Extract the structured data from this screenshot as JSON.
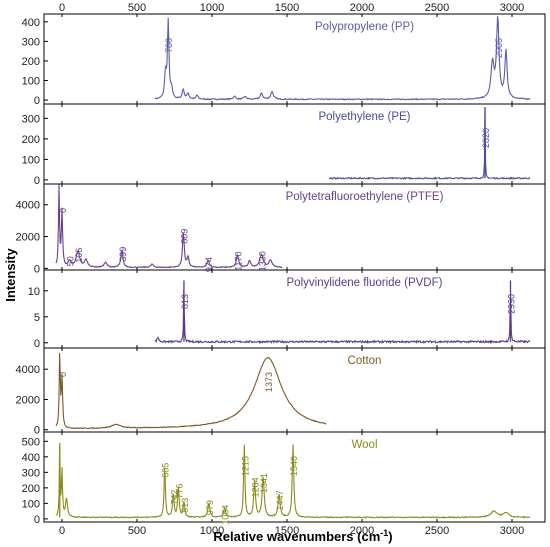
{
  "chart_data": {
    "type": "line",
    "xlabel": "Relative wavenumbers (cm",
    "xlabel_sup": "-1",
    "xlabel_tail": ")",
    "ylabel": "Intensity",
    "xlim": [
      -120,
      3220
    ],
    "x_ticks": [
      0,
      500,
      1000,
      1500,
      2000,
      2500,
      3000
    ],
    "x_tick_labels": [
      "0",
      "500",
      "1000",
      "1500",
      "2000",
      "2500",
      "3000"
    ],
    "grid": false,
    "panels": [
      {
        "title": "Polypropylene (PP)",
        "color": "#5b5ba8",
        "ylim": [
          -20,
          440
        ],
        "y_ticks": [
          0,
          100,
          200,
          300,
          400
        ],
        "y_tick_labels": [
          "0",
          "100",
          "200",
          "300",
          "400"
        ],
        "x_range": [
          620,
          3120
        ],
        "baseline": 4,
        "noise": 2.5,
        "peaks": [
          {
            "x": 690,
            "h": 130,
            "w": 7
          },
          {
            "x": 708,
            "h": 395,
            "w": 6
          },
          {
            "x": 730,
            "h": 50,
            "w": 8
          },
          {
            "x": 808,
            "h": 50,
            "w": 8
          },
          {
            "x": 840,
            "h": 30,
            "w": 8
          },
          {
            "x": 900,
            "h": 20,
            "w": 8
          },
          {
            "x": 1150,
            "h": 15,
            "w": 10
          },
          {
            "x": 1220,
            "h": 14,
            "w": 10
          },
          {
            "x": 1330,
            "h": 30,
            "w": 10
          },
          {
            "x": 1400,
            "h": 40,
            "w": 10
          },
          {
            "x": 2870,
            "h": 180,
            "w": 12
          },
          {
            "x": 2905,
            "h": 400,
            "w": 10
          },
          {
            "x": 2960,
            "h": 240,
            "w": 9
          }
        ],
        "labels": [
          {
            "x": 708,
            "text": "708"
          },
          {
            "x": 2905,
            "text": "2905"
          }
        ]
      },
      {
        "title": "Polyethylene (PE)",
        "color": "#4b4b9e",
        "ylim": [
          -20,
          370
        ],
        "y_ticks": [
          0,
          100,
          200,
          300
        ],
        "y_tick_labels": [
          "0",
          "100",
          "200",
          "300"
        ],
        "x_range": [
          1780,
          3120
        ],
        "baseline": 8,
        "noise": 3,
        "peaks": [
          {
            "x": 2820,
            "h": 345,
            "w": 2
          }
        ],
        "labels": [
          {
            "x": 2820,
            "text": "2820"
          }
        ]
      },
      {
        "title": "Polytetrafluoroethylene (PTFE)",
        "color": "#6a3f8a",
        "ylim": [
          -100,
          5300
        ],
        "y_ticks": [
          0,
          2000,
          4000
        ],
        "y_tick_labels": [
          "0",
          "2000",
          "4000"
        ],
        "x_range": [
          -40,
          1470
        ],
        "baseline": 60,
        "noise": 25,
        "peaks": [
          {
            "x": -20,
            "h": 5000,
            "w": 4
          },
          {
            "x": 0,
            "h": 3500,
            "w": 5
          },
          {
            "x": 50,
            "h": 400,
            "w": 10
          },
          {
            "x": 106,
            "h": 1000,
            "w": 14
          },
          {
            "x": 160,
            "h": 450,
            "w": 12
          },
          {
            "x": 290,
            "h": 300,
            "w": 12
          },
          {
            "x": 399,
            "h": 1100,
            "w": 8
          },
          {
            "x": 600,
            "h": 200,
            "w": 10
          },
          {
            "x": 809,
            "h": 2200,
            "w": 7
          },
          {
            "x": 840,
            "h": 600,
            "w": 8
          },
          {
            "x": 974,
            "h": 450,
            "w": 9
          },
          {
            "x": 1170,
            "h": 800,
            "w": 9
          },
          {
            "x": 1250,
            "h": 400,
            "w": 10
          },
          {
            "x": 1330,
            "h": 800,
            "w": 14
          },
          {
            "x": 1390,
            "h": 450,
            "w": 12
          }
        ],
        "labels": [
          {
            "x": 0,
            "text": "0"
          },
          {
            "x": 50,
            "text": "50"
          },
          {
            "x": 106,
            "text": "106"
          },
          {
            "x": 399,
            "text": "399"
          },
          {
            "x": 809,
            "text": "809"
          },
          {
            "x": 974,
            "text": "974"
          },
          {
            "x": 1170,
            "text": "1170"
          },
          {
            "x": 1330,
            "text": "1330"
          }
        ]
      },
      {
        "title": "Polyvinylidene fluoride (PVDF)",
        "color": "#5a3d8a",
        "ylim": [
          -1,
          14
        ],
        "y_ticks": [
          0,
          5,
          10
        ],
        "y_tick_labels": [
          "0",
          "5",
          "10"
        ],
        "x_range": [
          620,
          3120
        ],
        "baseline": 0.2,
        "noise": 0.18,
        "peaks": [
          {
            "x": 640,
            "h": 0.9,
            "w": 6
          },
          {
            "x": 813,
            "h": 11.8,
            "w": 2.5
          },
          {
            "x": 2990,
            "h": 11.8,
            "w": 2.5
          }
        ],
        "labels": [
          {
            "x": 813,
            "text": "813"
          },
          {
            "x": 2990,
            "text": "2990"
          }
        ]
      },
      {
        "title": "Cotton",
        "color": "#7a5a2a",
        "ylim": [
          -150,
          5400
        ],
        "y_ticks": [
          0,
          2000,
          4000
        ],
        "y_tick_labels": [
          "0",
          "2000",
          "4000"
        ],
        "x_range": [
          -40,
          1760
        ],
        "baseline": 50,
        "noise": 25,
        "peaks": [
          {
            "x": -15,
            "h": 5000,
            "w": 4
          },
          {
            "x": 0,
            "h": 3300,
            "w": 5
          },
          {
            "x": 360,
            "h": 250,
            "w": 35
          },
          {
            "x": 1373,
            "h": 4700,
            "w": 110
          }
        ],
        "labels": [
          {
            "x": 0,
            "text": "0"
          },
          {
            "x": 1373,
            "text": "1373"
          }
        ]
      },
      {
        "title": "Wool",
        "color": "#8a8a1e",
        "ylim": [
          -20,
          560
        ],
        "y_ticks": [
          0,
          100,
          200,
          300,
          400,
          500
        ],
        "y_tick_labels": [
          "0",
          "100",
          "200",
          "300",
          "400",
          "500"
        ],
        "x_range": [
          -40,
          3120
        ],
        "baseline": 10,
        "noise": 3,
        "peaks": [
          {
            "x": -15,
            "h": 480,
            "w": 3
          },
          {
            "x": 0,
            "h": 300,
            "w": 4
          },
          {
            "x": 30,
            "h": 120,
            "w": 8
          },
          {
            "x": 685,
            "h": 330,
            "w": 5
          },
          {
            "x": 742,
            "h": 150,
            "w": 6
          },
          {
            "x": 776,
            "h": 190,
            "w": 6
          },
          {
            "x": 813,
            "h": 100,
            "w": 6
          },
          {
            "x": 979,
            "h": 90,
            "w": 8
          },
          {
            "x": 1084,
            "h": 60,
            "w": 8
          },
          {
            "x": 1215,
            "h": 480,
            "w": 5
          },
          {
            "x": 1284,
            "h": 230,
            "w": 7
          },
          {
            "x": 1341,
            "h": 260,
            "w": 8
          },
          {
            "x": 1447,
            "h": 150,
            "w": 8
          },
          {
            "x": 1540,
            "h": 470,
            "w": 6
          },
          {
            "x": 2880,
            "h": 40,
            "w": 25
          },
          {
            "x": 2960,
            "h": 30,
            "w": 20
          }
        ],
        "labels": [
          {
            "x": 685,
            "text": "685"
          },
          {
            "x": 742,
            "text": "742"
          },
          {
            "x": 776,
            "text": "776"
          },
          {
            "x": 813,
            "text": "813"
          },
          {
            "x": 979,
            "text": "979"
          },
          {
            "x": 1084,
            "text": "1084"
          },
          {
            "x": 1215,
            "text": "1215"
          },
          {
            "x": 1284,
            "text": "1284"
          },
          {
            "x": 1341,
            "text": "1341"
          },
          {
            "x": 1447,
            "text": "1447"
          },
          {
            "x": 1540,
            "text": "1540"
          }
        ]
      }
    ]
  }
}
